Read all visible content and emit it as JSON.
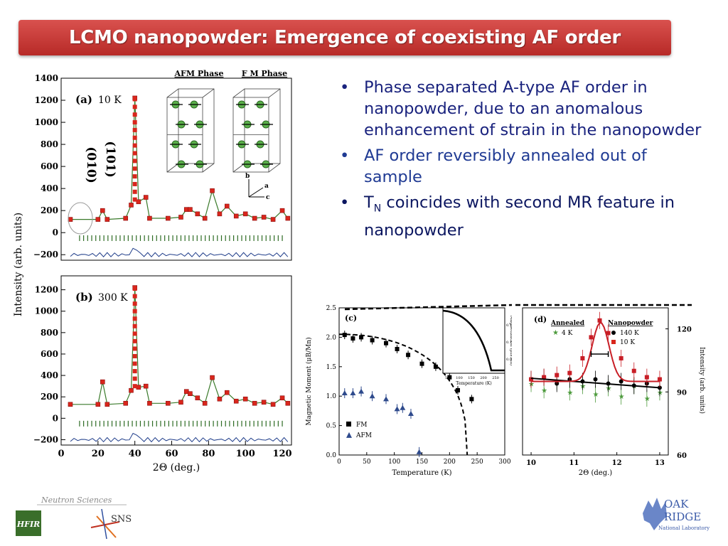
{
  "slide": {
    "title": "LCMO nanopowder: Emergence of coexisting AF order",
    "bullets": [
      "Phase separated A-type AF order in nanopowder, due to an anomalous enhancement of strain in the nanopowder",
      "AF order reversibly annealed out of sample",
      "T",
      "N",
      "coincides with second MR feature in nanopowder"
    ],
    "footer": {
      "neutron_sciences": "Neutron Sciences",
      "hfir": "HFIR",
      "sns": "SNS",
      "ornl_line1": "OAK",
      "ornl_line2": "RIDGE",
      "ornl_line3": "National Laboratory"
    }
  },
  "chart_data": [
    {
      "type": "line",
      "panel": "(a)",
      "label": "10 K",
      "ylabel": "Intensity (arb. units)",
      "xlabel": "2Θ (deg.)",
      "xlim": [
        0,
        125
      ],
      "ylim": [
        -250,
        1400
      ],
      "yticks": [
        -200,
        0,
        200,
        400,
        600,
        800,
        1000,
        1200,
        1400
      ],
      "peak_labels": [
        "(010)",
        "(101)"
      ],
      "structure_labels": [
        "AFM Phase",
        "F M Phase"
      ],
      "axis_labels": [
        "b",
        "a",
        "c"
      ],
      "x": [
        5,
        20,
        22.5,
        25,
        35,
        38,
        40,
        42,
        46,
        48,
        58,
        65,
        68,
        70,
        74,
        78,
        82,
        86,
        90,
        95,
        100,
        105,
        110,
        115,
        120,
        123
      ],
      "values": [
        120,
        120,
        200,
        120,
        130,
        250,
        1220,
        280,
        320,
        130,
        130,
        140,
        210,
        210,
        170,
        130,
        380,
        170,
        240,
        150,
        170,
        130,
        140,
        120,
        200,
        130
      ]
    },
    {
      "type": "line",
      "panel": "(b)",
      "label": "300 K",
      "xlim": [
        0,
        125
      ],
      "ylim": [
        -250,
        1400
      ],
      "yticks": [
        -200,
        0,
        200,
        400,
        600,
        800,
        1000,
        1200
      ],
      "xticks": [
        0,
        20,
        40,
        60,
        80,
        100,
        120
      ],
      "xlabel": "2Θ (deg.)",
      "x": [
        5,
        20,
        22.5,
        25,
        35,
        38,
        40,
        42,
        46,
        48,
        58,
        65,
        68,
        70,
        74,
        78,
        82,
        86,
        90,
        95,
        100,
        105,
        110,
        115,
        120,
        123
      ],
      "values": [
        130,
        130,
        340,
        130,
        140,
        260,
        1220,
        290,
        300,
        140,
        140,
        150,
        250,
        230,
        190,
        140,
        380,
        180,
        240,
        160,
        180,
        140,
        150,
        130,
        190,
        140
      ]
    },
    {
      "type": "scatter",
      "panel": "(c)",
      "xlabel": "Temperature (K)",
      "ylabel": "Magnetic Moment (μB/Mn)",
      "xlim": [
        0,
        300
      ],
      "ylim": [
        0,
        2.5
      ],
      "xticks": [
        0,
        50,
        100,
        150,
        200,
        250,
        300
      ],
      "yticks": [
        0.0,
        0.5,
        1.0,
        1.5,
        2.0,
        2.5
      ],
      "series": [
        {
          "name": "FM",
          "x": [
            10,
            25,
            40,
            60,
            85,
            105,
            125,
            150,
            175,
            200,
            215,
            240
          ],
          "values": [
            2.04,
            1.98,
            2.0,
            1.95,
            1.9,
            1.8,
            1.7,
            1.55,
            1.5,
            1.32,
            1.1,
            0.95
          ]
        },
        {
          "name": "AFM",
          "x": [
            10,
            25,
            40,
            60,
            85,
            105,
            115,
            130,
            145
          ],
          "values": [
            1.05,
            1.05,
            1.08,
            1.0,
            0.95,
            0.78,
            0.8,
            0.7,
            0.05
          ]
        }
      ],
      "inset": {
        "xlabel": "Temperature (K)",
        "ylabel": "Magnetization (μB/Mn)",
        "xticks": [
          50,
          100,
          150,
          200,
          250
        ],
        "yticks": [
          0.05,
          0.1,
          0.15
        ]
      }
    },
    {
      "type": "scatter",
      "panel": "(d)",
      "xlabel": "2Θ (deg.)",
      "ylabel": "Intensity (arb. units)",
      "xlim": [
        9.8,
        13.2
      ],
      "ylim": [
        60,
        130
      ],
      "xticks": [
        10,
        11,
        12,
        13
      ],
      "yticks": [
        60,
        90,
        120
      ],
      "legend": {
        "Annealed": [
          "4 K"
        ],
        "Nanopowder": [
          "140 K",
          "10 K"
        ]
      },
      "series": [
        {
          "name": "4 K",
          "x": [
            10.0,
            10.3,
            10.6,
            10.9,
            11.2,
            11.5,
            11.8,
            12.1,
            12.4,
            12.7,
            13.0
          ],
          "values": [
            94,
            91,
            95,
            90,
            93,
            89,
            92,
            88,
            93,
            87,
            90
          ]
        },
        {
          "name": "140 K",
          "x": [
            10.0,
            10.3,
            10.6,
            10.9,
            11.2,
            11.5,
            11.8,
            12.1,
            12.4,
            12.7,
            13.0
          ],
          "values": [
            96,
            97,
            94,
            96,
            95,
            96,
            94,
            95,
            93,
            94,
            92
          ]
        },
        {
          "name": "10 K",
          "x": [
            10.0,
            10.3,
            10.6,
            10.9,
            11.2,
            11.4,
            11.6,
            11.8,
            12.1,
            12.4,
            12.7,
            13.0
          ],
          "values": [
            96,
            97,
            98,
            99,
            106,
            116,
            124,
            118,
            106,
            100,
            97,
            96
          ]
        }
      ]
    }
  ]
}
